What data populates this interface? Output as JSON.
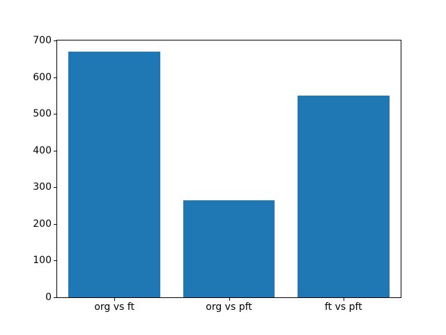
{
  "figure": {
    "background": "#ffffff"
  },
  "chart_data": {
    "type": "bar",
    "categories": [
      "org vs ft",
      "org vs pft",
      "ft vs pft"
    ],
    "values": [
      670,
      265,
      550
    ],
    "title": "",
    "xlabel": "",
    "ylabel": "",
    "ylim": [
      0,
      700
    ],
    "yticks": [
      0,
      100,
      200,
      300,
      400,
      500,
      600,
      700
    ],
    "bar_color": "#1f77b4",
    "bar_width_fraction": 0.8,
    "grid": false,
    "legend": null,
    "axis_color": "#000000",
    "tick_label_color": "#000000"
  }
}
